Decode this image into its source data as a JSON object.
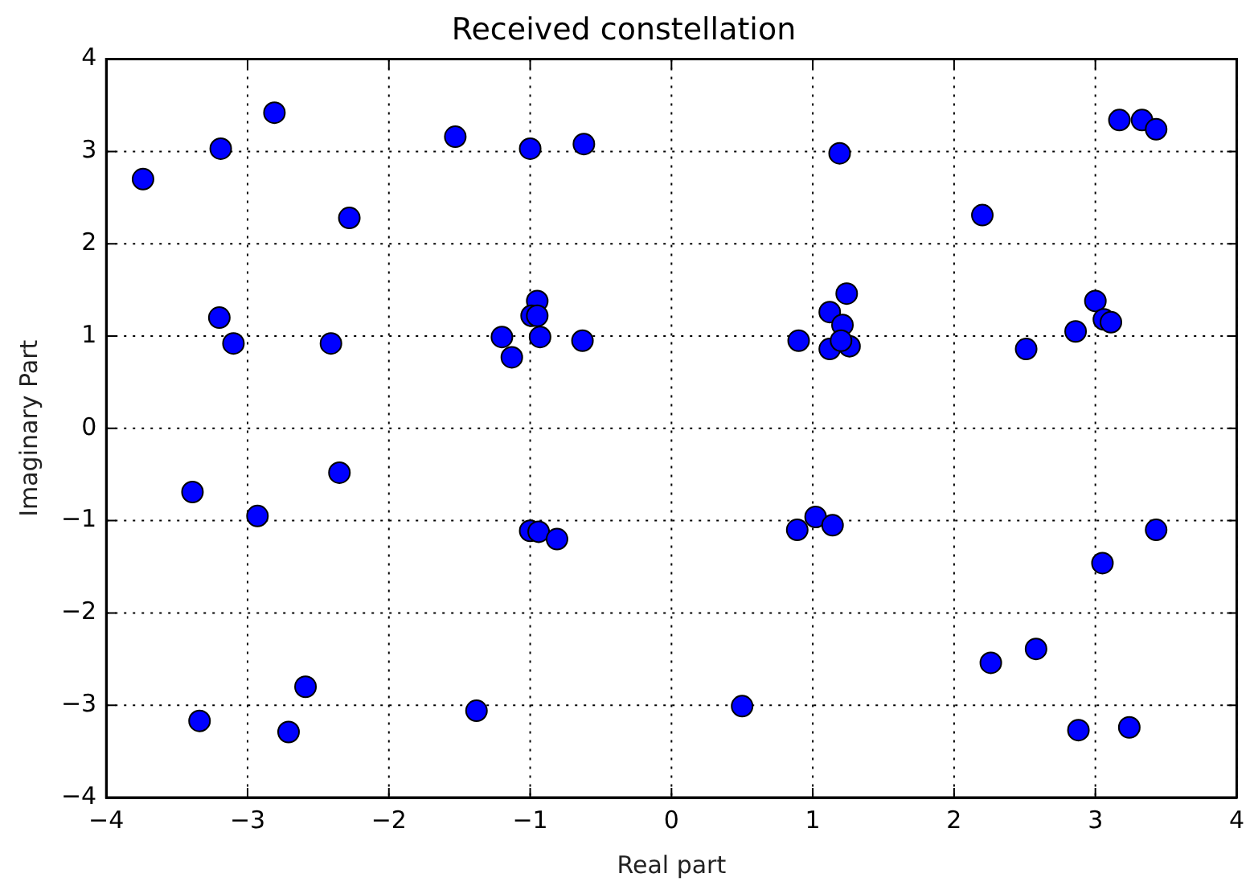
{
  "chart_data": {
    "type": "scatter",
    "title": "Received constellation",
    "xlabel": "Real part",
    "ylabel": "Imaginary Part",
    "xlim": [
      -4,
      4
    ],
    "ylim": [
      -4,
      4
    ],
    "xticks": [
      {
        "value": -4,
        "label": "−4"
      },
      {
        "value": -3,
        "label": "−3"
      },
      {
        "value": -2,
        "label": "−2"
      },
      {
        "value": -1,
        "label": "−1"
      },
      0,
      1,
      2,
      3,
      4
    ],
    "yticks": [
      {
        "value": -4,
        "label": "−4"
      },
      {
        "value": -3,
        "label": "−3"
      },
      {
        "value": -2,
        "label": "−2"
      },
      {
        "value": -1,
        "label": "−1"
      },
      0,
      1,
      2,
      3,
      4
    ],
    "grid": true,
    "marker": "circle",
    "legend": false,
    "series": [
      {
        "color": "#0000ff",
        "x": [
          -3.74,
          -3.19,
          -2.81,
          -2.28,
          -1.53,
          -1.0,
          -0.62,
          1.19,
          2.2,
          3.17,
          3.33,
          3.43,
          -3.2,
          -3.1,
          -2.41,
          -0.63,
          -0.95,
          -0.99,
          -0.95,
          -0.93,
          -1.2,
          -1.13,
          0.9,
          1.12,
          1.24,
          1.21,
          1.12,
          1.26,
          1.2,
          2.51,
          2.86,
          3.0,
          3.06,
          3.11,
          -3.39,
          -2.93,
          -2.35,
          -1.0,
          -0.94,
          -0.81,
          -3.34,
          -2.71,
          -2.59,
          -1.38,
          0.89,
          1.02,
          1.14,
          3.43,
          3.05,
          2.58,
          2.26,
          2.88,
          3.24,
          0.5
        ],
        "values": [
          2.7,
          3.03,
          3.42,
          2.28,
          3.16,
          3.03,
          3.08,
          2.98,
          2.31,
          3.34,
          3.34,
          3.24,
          1.2,
          0.92,
          0.92,
          0.95,
          1.38,
          1.22,
          1.22,
          0.99,
          0.99,
          0.77,
          0.95,
          1.26,
          1.46,
          1.12,
          0.86,
          0.89,
          0.95,
          0.86,
          1.05,
          1.38,
          1.18,
          1.15,
          -0.69,
          -0.95,
          -0.48,
          -1.11,
          -1.12,
          -1.2,
          -3.17,
          -3.29,
          -2.8,
          -3.06,
          -1.1,
          -0.96,
          -1.05,
          -1.1,
          -1.46,
          -2.39,
          -2.54,
          -3.27,
          -3.24,
          -3.01
        ]
      }
    ]
  }
}
